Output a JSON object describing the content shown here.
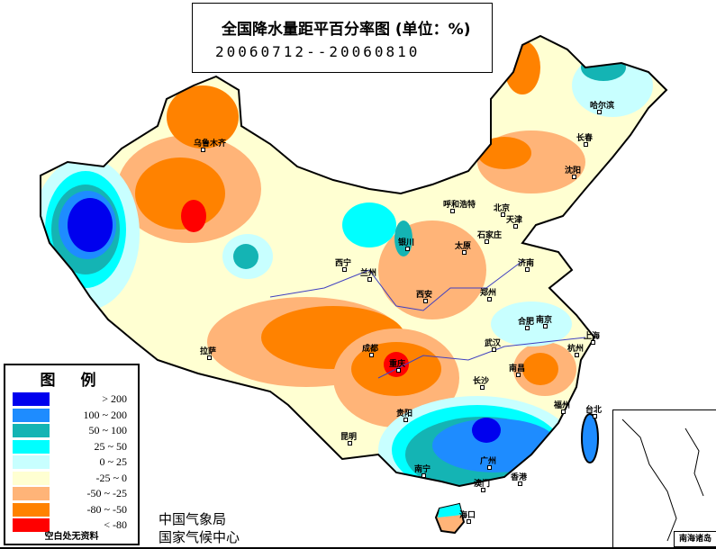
{
  "header": {
    "title": "全国降水量距平百分率图 (单位：%)",
    "period": "20060712--20060810"
  },
  "legend": {
    "title": "图例",
    "items": [
      {
        "label": "> 200",
        "color": "#0000ee"
      },
      {
        "label": "100 ~ 200",
        "color": "#1e8cff"
      },
      {
        "label": "50 ~ 100",
        "color": "#14b4b4"
      },
      {
        "label": "25 ~ 50",
        "color": "#00ffff"
      },
      {
        "label": "0 ~ 25",
        "color": "#c8ffff"
      },
      {
        "label": "-25 ~ 0",
        "color": "#ffffd2"
      },
      {
        "label": "-50 ~ -25",
        "color": "#ffb478"
      },
      {
        "label": "-80 ~ -50",
        "color": "#ff8200"
      },
      {
        "label": "< -80",
        "color": "#ff0000"
      }
    ],
    "note": "空白处无资料"
  },
  "org": {
    "line1": "中国气象局",
    "line2": "国家气候中心"
  },
  "inset": {
    "label": "南海诸岛"
  },
  "cities": [
    "乌鲁木齐",
    "哈尔滨",
    "长春",
    "沈阳",
    "呼和浩特",
    "北京",
    "天津",
    "石家庄",
    "太原",
    "银川",
    "西宁",
    "兰州",
    "济南",
    "西安",
    "郑州",
    "合肥",
    "南京",
    "上海",
    "武汉",
    "杭州",
    "成都",
    "重庆",
    "南昌",
    "长沙",
    "拉萨",
    "福州",
    "贵阳",
    "昆明",
    "台北",
    "南宁",
    "广州",
    "香港",
    "澳门",
    "海口"
  ]
}
